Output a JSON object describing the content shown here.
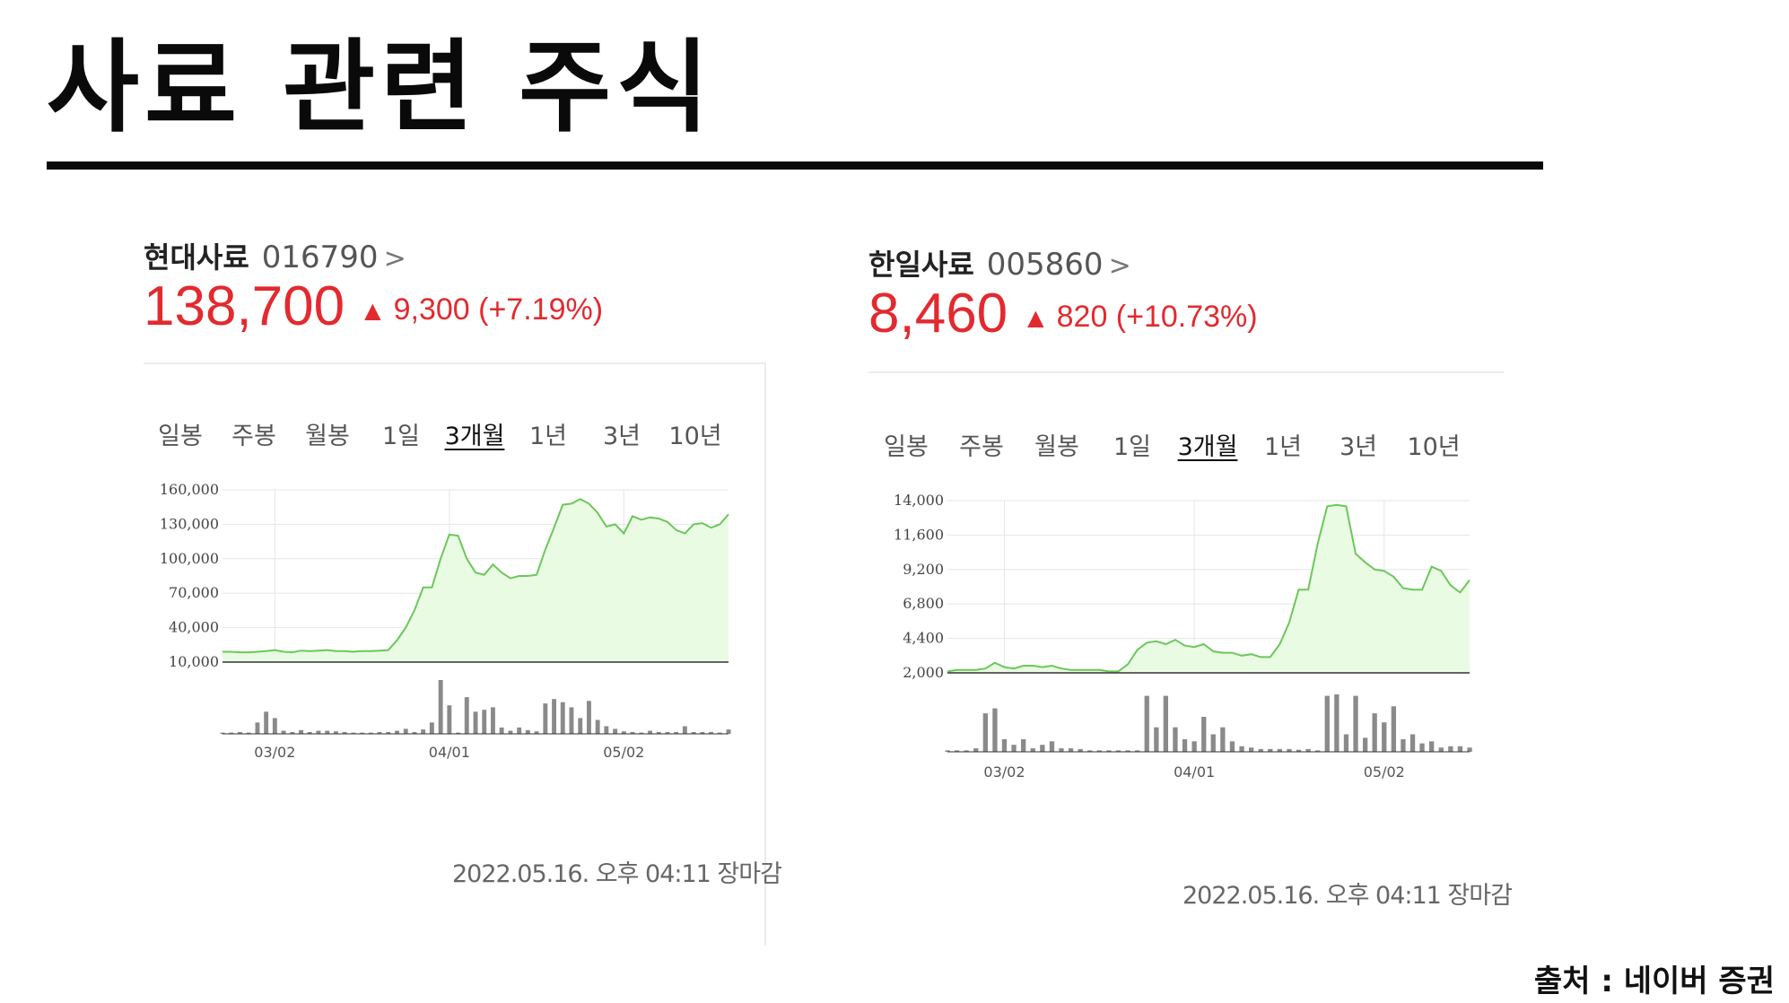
{
  "page": {
    "title": "사료 관련 주식",
    "source": "출처 : 네이버 증권"
  },
  "stocks": [
    {
      "name": "현대사료",
      "code": "016790",
      "chevron": ">",
      "price": "138,700",
      "change_symbol": "▲",
      "change": "9,300 (+7.19%)",
      "timestamp": "2022.05.16. 오후 04:11 장마감",
      "tabs": [
        "일봉",
        "주봉",
        "월봉",
        "1일",
        "3개월",
        "1년",
        "3년",
        "10년"
      ],
      "active_tab": 4,
      "chart_data": {
        "type": "area",
        "ylim": [
          10000,
          160000
        ],
        "yticks": [
          10000,
          40000,
          70000,
          100000,
          130000,
          160000
        ],
        "ytick_labels": [
          "10,000",
          "40,000",
          "70,000",
          "100,000",
          "130,000",
          "160,000"
        ],
        "x_ticks": [
          {
            "label": "03/02",
            "index": 6
          },
          {
            "label": "04/01",
            "index": 26
          },
          {
            "label": "05/02",
            "index": 46
          }
        ],
        "series": [
          {
            "values": [
              19000,
              19000,
              18500,
              18500,
              19000,
              19500,
              20500,
              19000,
              18500,
              20000,
              19500,
              20000,
              20500,
              19500,
              19500,
              19000,
              19500,
              19500,
              20000,
              20500,
              29000,
              40000,
              55000,
              75000,
              75000,
              100000,
              121000,
              120000,
              100000,
              88000,
              86000,
              95000,
              88000,
              83000,
              85000,
              85000,
              86000,
              108000,
              127000,
              147000,
              148000,
              152000,
              148000,
              140000,
              128000,
              130000,
              122000,
              137000,
              134000,
              136000,
              135000,
              132000,
              125000,
              122000,
              130000,
              131000,
              127000,
              130000,
              138700
            ]
          }
        ],
        "volume": [
          2,
          2,
          3,
          2,
          18,
          35,
          25,
          5,
          3,
          6,
          3,
          5,
          5,
          4,
          3,
          2,
          2,
          2,
          3,
          3,
          5,
          8,
          3,
          7,
          18,
          85,
          45,
          2,
          58,
          35,
          38,
          42,
          10,
          5,
          10,
          6,
          4,
          48,
          55,
          50,
          42,
          25,
          52,
          22,
          12,
          8,
          4,
          3,
          2,
          5,
          3,
          3,
          3,
          12,
          3,
          3,
          3,
          2,
          7
        ]
      }
    },
    {
      "name": "한일사료",
      "code": "005860",
      "chevron": ">",
      "price": "8,460",
      "change_symbol": "▲",
      "change": "820 (+10.73%)",
      "timestamp": "2022.05.16. 오후 04:11 장마감",
      "tabs": [
        "일봉",
        "주봉",
        "월봉",
        "1일",
        "3개월",
        "1년",
        "3년",
        "10년"
      ],
      "active_tab": 4,
      "chart_data": {
        "type": "area",
        "ylim": [
          2000,
          14000
        ],
        "yticks": [
          2000,
          4400,
          6800,
          9200,
          11600,
          14000
        ],
        "ytick_labels": [
          "2,000",
          "4,400",
          "6,800",
          "9,200",
          "11,600",
          "14,000"
        ],
        "x_ticks": [
          {
            "label": "03/02",
            "index": 6
          },
          {
            "label": "04/01",
            "index": 26
          },
          {
            "label": "05/02",
            "index": 46
          }
        ],
        "series": [
          {
            "values": [
              2100,
              2200,
              2200,
              2200,
              2300,
              2700,
              2400,
              2300,
              2500,
              2500,
              2400,
              2500,
              2300,
              2200,
              2200,
              2200,
              2200,
              2100,
              2100,
              2600,
              3600,
              4100,
              4200,
              4000,
              4300,
              3900,
              3800,
              4000,
              3500,
              3400,
              3400,
              3200,
              3300,
              3100,
              3100,
              4000,
              5500,
              7800,
              7800,
              11000,
              13600,
              13700,
              13600,
              10300,
              9700,
              9200,
              9100,
              8700,
              7900,
              7800,
              7800,
              9400,
              9100,
              8100,
              7600,
              8460
            ]
          }
        ],
        "volume": [
          2,
          2,
          2,
          5,
          55,
          62,
          18,
          10,
          18,
          5,
          10,
          15,
          5,
          5,
          4,
          2,
          2,
          2,
          2,
          2,
          2,
          80,
          35,
          80,
          35,
          18,
          15,
          50,
          25,
          35,
          15,
          8,
          6,
          4,
          4,
          4,
          4,
          3,
          4,
          2,
          80,
          82,
          25,
          80,
          20,
          55,
          42,
          65,
          18,
          25,
          12,
          15,
          6,
          8,
          8,
          6
        ]
      }
    }
  ]
}
